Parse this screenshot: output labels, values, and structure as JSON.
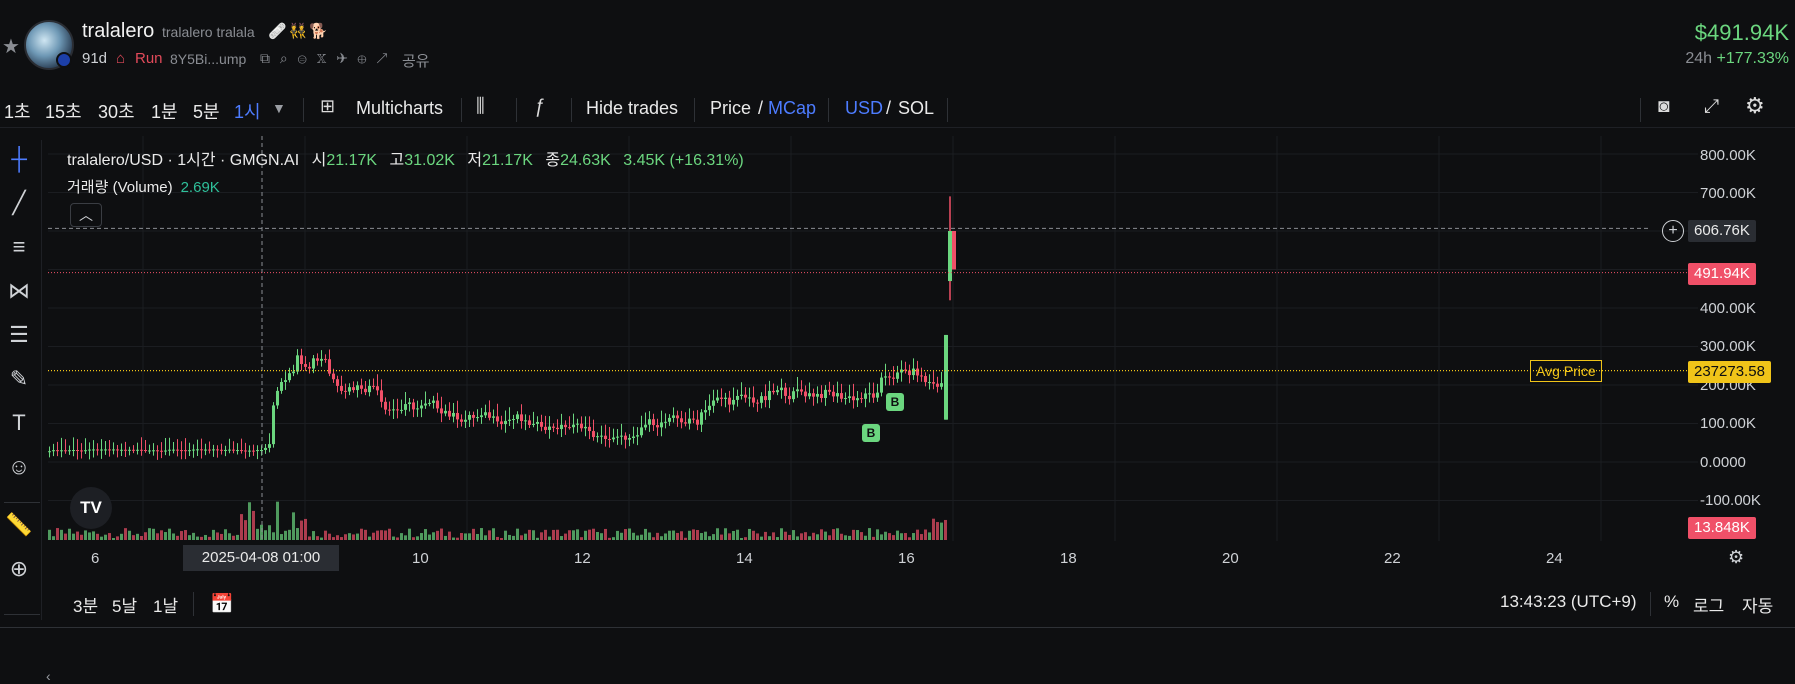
{
  "header": {
    "token_name": "tralalero",
    "token_subtitle": "tralalero tralala",
    "emojis": "🩹👯🐕",
    "age": "91d",
    "status": "Run",
    "address": "8Y5Bi...ump",
    "share_label": "공유",
    "price": "$491.94K",
    "change_period": "24h",
    "change_value": "+177.33%"
  },
  "toolbar": {
    "intervals": [
      "1초",
      "15초",
      "30초",
      "1분",
      "5분",
      "1시"
    ],
    "active_interval": "1시",
    "multicharts_label": "Multicharts",
    "hide_trades_label": "Hide trades",
    "price_label": "Price",
    "mcap_label": "MCap",
    "usd_label": "USD",
    "sol_label": "SOL",
    "slash": "/"
  },
  "legend": {
    "title": "tralalero/USD · 1시간 · GMGN.AI",
    "open_label": "시",
    "open": "21.17K",
    "high_label": "고",
    "high": "31.02K",
    "low_label": "저",
    "low": "21.17K",
    "close_label": "종",
    "close": "24.63K",
    "delta": "3.45K (+16.31%)",
    "volume_label": "거래량 (Volume)",
    "volume": "2.69K",
    "logo_text": "TV"
  },
  "chart_data": {
    "type": "candlestick",
    "y_axis_ticks": [
      "800.00K",
      "700.00K",
      "500.00K",
      "400.00K",
      "300.00K",
      "200.00K",
      "100.00K",
      "0.0000",
      "-100.00K"
    ],
    "x_axis_ticks": [
      "6",
      "10",
      "12",
      "14",
      "16",
      "18",
      "20",
      "22",
      "24"
    ],
    "crosshair_x_label": "2025-04-08   01:00",
    "crosshair_y_label": "606.76K",
    "last_price_label": "491.94K",
    "avg_price_label": "Avg Price",
    "avg_price_value": "237273.58",
    "volume_label_value": "13.848K",
    "buy_marker": "B",
    "colors": {
      "up": "#6bd67f",
      "down": "#f05068",
      "avg": "#f0c419",
      "accent": "#4d7cff"
    }
  },
  "bottom": {
    "ranges": [
      "3분",
      "5날",
      "1날"
    ],
    "time": "13:43:23 (UTC+9)",
    "percent_label": "%",
    "log_label": "로그",
    "auto_label": "자동"
  }
}
